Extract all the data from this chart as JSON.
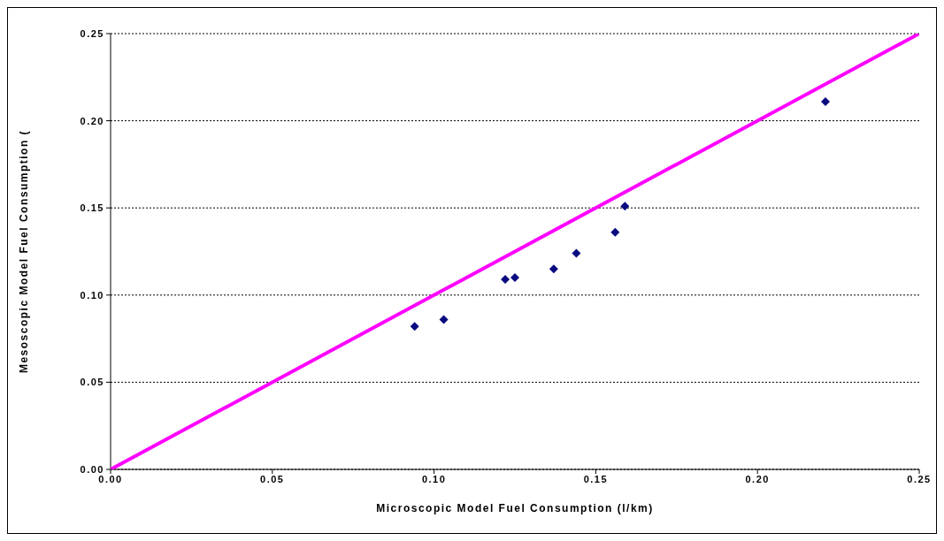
{
  "chart_data": {
    "type": "scatter",
    "xlabel": "Microscopic Model Fuel Consumption (l/km)",
    "ylabel": "Mesoscopic Model Fuel Consumption (",
    "xlim": [
      0,
      0.25
    ],
    "ylim": [
      0,
      0.25
    ],
    "xticks": [
      {
        "value": 0,
        "label": "0.00"
      },
      {
        "value": 0.05,
        "label": "0.05"
      },
      {
        "value": 0.1,
        "label": "0.10"
      },
      {
        "value": 0.15,
        "label": "0.15"
      },
      {
        "value": 0.2,
        "label": "0.20"
      },
      {
        "value": 0.25,
        "label": "0.25"
      }
    ],
    "yticks": [
      {
        "value": 0,
        "label": "0.00"
      },
      {
        "value": 0.05,
        "label": "0.05"
      },
      {
        "value": 0.1,
        "label": "0.10"
      },
      {
        "value": 0.15,
        "label": "0.15"
      },
      {
        "value": 0.2,
        "label": "0.20"
      },
      {
        "value": 0.25,
        "label": "0.25"
      }
    ],
    "grid": "y",
    "series": [
      {
        "color": "#0a0a80",
        "marker": "diamond",
        "x": [
          0.094,
          0.103,
          0.122,
          0.125,
          0.137,
          0.144,
          0.156,
          0.159,
          0.221
        ],
        "values": [
          0.082,
          0.086,
          0.109,
          0.11,
          0.115,
          0.124,
          0.136,
          0.151,
          0.211
        ]
      },
      {
        "type": "line",
        "color": "#ff00ff",
        "x": [
          0,
          0.25
        ],
        "values": [
          0,
          0.25
        ]
      }
    ]
  }
}
